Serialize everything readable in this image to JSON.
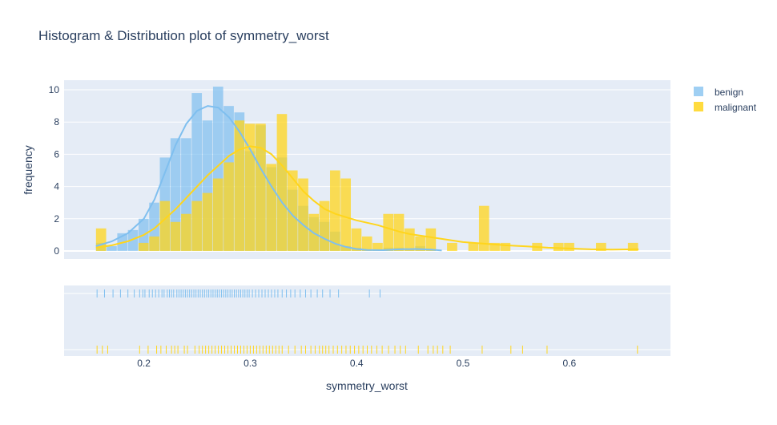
{
  "chart_data": {
    "type": "bar",
    "title": "Histogram & Distribution plot of symmetry_worst",
    "xlabel": "symmetry_worst",
    "ylabel": "frequency",
    "xlim": [
      0.125,
      0.695
    ],
    "ylim": [
      -0.5,
      10.6
    ],
    "bin_width": 0.01,
    "yticks": [
      0,
      2,
      4,
      6,
      8,
      10
    ],
    "xticks": [
      0.2,
      0.3,
      0.4,
      0.5,
      0.6
    ],
    "grid": true,
    "legend_position": "top-right",
    "series": [
      {
        "name": "benign",
        "color": "#7fbfef",
        "bins": [
          {
            "x0": 0.155,
            "v": 0.5
          },
          {
            "x0": 0.165,
            "v": 0.3
          },
          {
            "x0": 0.175,
            "v": 1.1
          },
          {
            "x0": 0.185,
            "v": 1.3
          },
          {
            "x0": 0.195,
            "v": 2.0
          },
          {
            "x0": 0.205,
            "v": 3.0
          },
          {
            "x0": 0.215,
            "v": 5.8
          },
          {
            "x0": 0.225,
            "v": 7.0
          },
          {
            "x0": 0.235,
            "v": 7.0
          },
          {
            "x0": 0.245,
            "v": 9.8
          },
          {
            "x0": 0.255,
            "v": 8.1
          },
          {
            "x0": 0.265,
            "v": 10.2
          },
          {
            "x0": 0.275,
            "v": 9.0
          },
          {
            "x0": 0.285,
            "v": 8.6
          },
          {
            "x0": 0.295,
            "v": 6.2
          },
          {
            "x0": 0.305,
            "v": 7.8
          },
          {
            "x0": 0.315,
            "v": 5.2
          },
          {
            "x0": 0.325,
            "v": 5.8
          },
          {
            "x0": 0.335,
            "v": 3.8
          },
          {
            "x0": 0.345,
            "v": 2.8
          },
          {
            "x0": 0.355,
            "v": 2.1
          },
          {
            "x0": 0.365,
            "v": 1.8
          },
          {
            "x0": 0.375,
            "v": 1.2
          },
          {
            "x0": 0.385,
            "v": 0.3
          },
          {
            "x0": 0.395,
            "v": 0.2
          },
          {
            "x0": 0.405,
            "v": 0.1
          },
          {
            "x0": 0.415,
            "v": 0.1
          },
          {
            "x0": 0.425,
            "v": 0.2
          },
          {
            "x0": 0.435,
            "v": 0.2
          },
          {
            "x0": 0.445,
            "v": 0.1
          },
          {
            "x0": 0.455,
            "v": 0.3
          },
          {
            "x0": 0.465,
            "v": 0.1
          }
        ],
        "kde": [
          [
            0.155,
            0.3
          ],
          [
            0.17,
            0.6
          ],
          [
            0.185,
            1.1
          ],
          [
            0.2,
            2.0
          ],
          [
            0.21,
            3.2
          ],
          [
            0.22,
            4.9
          ],
          [
            0.23,
            6.6
          ],
          [
            0.24,
            7.9
          ],
          [
            0.25,
            8.7
          ],
          [
            0.26,
            9.0
          ],
          [
            0.27,
            8.9
          ],
          [
            0.28,
            8.3
          ],
          [
            0.29,
            7.4
          ],
          [
            0.3,
            6.3
          ],
          [
            0.31,
            5.1
          ],
          [
            0.32,
            4.0
          ],
          [
            0.33,
            3.0
          ],
          [
            0.34,
            2.2
          ],
          [
            0.35,
            1.6
          ],
          [
            0.36,
            1.1
          ],
          [
            0.37,
            0.75
          ],
          [
            0.38,
            0.45
          ],
          [
            0.39,
            0.25
          ],
          [
            0.4,
            0.12
          ],
          [
            0.41,
            0.06
          ],
          [
            0.425,
            0.05
          ],
          [
            0.44,
            0.1
          ],
          [
            0.455,
            0.12
          ],
          [
            0.47,
            0.08
          ],
          [
            0.48,
            0.03
          ]
        ],
        "rug": [
          0.156,
          0.163,
          0.171,
          0.178,
          0.185,
          0.191,
          0.196,
          0.199,
          0.201,
          0.205,
          0.208,
          0.211,
          0.214,
          0.217,
          0.219,
          0.222,
          0.224,
          0.226,
          0.228,
          0.231,
          0.233,
          0.235,
          0.237,
          0.239,
          0.241,
          0.243,
          0.245,
          0.247,
          0.249,
          0.251,
          0.253,
          0.255,
          0.257,
          0.259,
          0.261,
          0.263,
          0.265,
          0.267,
          0.269,
          0.271,
          0.273,
          0.275,
          0.277,
          0.279,
          0.281,
          0.283,
          0.285,
          0.287,
          0.289,
          0.291,
          0.293,
          0.295,
          0.297,
          0.299,
          0.302,
          0.305,
          0.308,
          0.311,
          0.314,
          0.317,
          0.32,
          0.323,
          0.326,
          0.33,
          0.334,
          0.338,
          0.342,
          0.347,
          0.352,
          0.357,
          0.363,
          0.368,
          0.375,
          0.383,
          0.412,
          0.422
        ]
      },
      {
        "name": "malignant",
        "color": "#ffd51c",
        "bins": [
          {
            "x0": 0.155,
            "v": 1.4
          },
          {
            "x0": 0.165,
            "v": 0.0
          },
          {
            "x0": 0.175,
            "v": 0.0
          },
          {
            "x0": 0.185,
            "v": 0.0
          },
          {
            "x0": 0.195,
            "v": 0.5
          },
          {
            "x0": 0.205,
            "v": 0.9
          },
          {
            "x0": 0.215,
            "v": 3.1
          },
          {
            "x0": 0.225,
            "v": 1.8
          },
          {
            "x0": 0.235,
            "v": 2.3
          },
          {
            "x0": 0.245,
            "v": 3.1
          },
          {
            "x0": 0.255,
            "v": 3.6
          },
          {
            "x0": 0.265,
            "v": 4.5
          },
          {
            "x0": 0.275,
            "v": 5.5
          },
          {
            "x0": 0.285,
            "v": 8.1
          },
          {
            "x0": 0.295,
            "v": 7.9
          },
          {
            "x0": 0.305,
            "v": 7.9
          },
          {
            "x0": 0.315,
            "v": 5.4
          },
          {
            "x0": 0.325,
            "v": 8.5
          },
          {
            "x0": 0.335,
            "v": 5.0
          },
          {
            "x0": 0.345,
            "v": 4.5
          },
          {
            "x0": 0.355,
            "v": 2.3
          },
          {
            "x0": 0.365,
            "v": 3.1
          },
          {
            "x0": 0.375,
            "v": 5.0
          },
          {
            "x0": 0.385,
            "v": 4.5
          },
          {
            "x0": 0.395,
            "v": 1.4
          },
          {
            "x0": 0.405,
            "v": 0.9
          },
          {
            "x0": 0.415,
            "v": 0.5
          },
          {
            "x0": 0.425,
            "v": 2.3
          },
          {
            "x0": 0.435,
            "v": 2.3
          },
          {
            "x0": 0.445,
            "v": 1.4
          },
          {
            "x0": 0.455,
            "v": 0.9
          },
          {
            "x0": 0.465,
            "v": 1.4
          },
          {
            "x0": 0.475,
            "v": 0.0
          },
          {
            "x0": 0.485,
            "v": 0.5
          },
          {
            "x0": 0.495,
            "v": 0.0
          },
          {
            "x0": 0.505,
            "v": 0.5
          },
          {
            "x0": 0.515,
            "v": 2.8
          },
          {
            "x0": 0.525,
            "v": 0.5
          },
          {
            "x0": 0.535,
            "v": 0.5
          },
          {
            "x0": 0.545,
            "v": 0.0
          },
          {
            "x0": 0.555,
            "v": 0.0
          },
          {
            "x0": 0.565,
            "v": 0.5
          },
          {
            "x0": 0.575,
            "v": 0.0
          },
          {
            "x0": 0.585,
            "v": 0.5
          },
          {
            "x0": 0.595,
            "v": 0.5
          },
          {
            "x0": 0.605,
            "v": 0.0
          },
          {
            "x0": 0.615,
            "v": 0.0
          },
          {
            "x0": 0.625,
            "v": 0.5
          },
          {
            "x0": 0.655,
            "v": 0.5
          }
        ],
        "kde": [
          [
            0.155,
            0.2
          ],
          [
            0.17,
            0.35
          ],
          [
            0.185,
            0.6
          ],
          [
            0.2,
            1.0
          ],
          [
            0.21,
            1.4
          ],
          [
            0.22,
            2.0
          ],
          [
            0.23,
            2.6
          ],
          [
            0.24,
            3.3
          ],
          [
            0.25,
            4.0
          ],
          [
            0.26,
            4.7
          ],
          [
            0.27,
            5.3
          ],
          [
            0.28,
            5.9
          ],
          [
            0.29,
            6.3
          ],
          [
            0.3,
            6.5
          ],
          [
            0.31,
            6.4
          ],
          [
            0.32,
            6.0
          ],
          [
            0.33,
            5.3
          ],
          [
            0.34,
            4.5
          ],
          [
            0.35,
            3.7
          ],
          [
            0.36,
            3.1
          ],
          [
            0.37,
            2.6
          ],
          [
            0.38,
            2.3
          ],
          [
            0.39,
            2.1
          ],
          [
            0.4,
            1.9
          ],
          [
            0.41,
            1.75
          ],
          [
            0.42,
            1.6
          ],
          [
            0.43,
            1.4
          ],
          [
            0.44,
            1.2
          ],
          [
            0.45,
            1.05
          ],
          [
            0.46,
            0.95
          ],
          [
            0.47,
            0.85
          ],
          [
            0.48,
            0.75
          ],
          [
            0.49,
            0.65
          ],
          [
            0.5,
            0.55
          ],
          [
            0.52,
            0.45
          ],
          [
            0.54,
            0.35
          ],
          [
            0.56,
            0.28
          ],
          [
            0.58,
            0.2
          ],
          [
            0.6,
            0.15
          ],
          [
            0.62,
            0.1
          ],
          [
            0.64,
            0.08
          ],
          [
            0.66,
            0.1
          ],
          [
            0.665,
            0.1
          ]
        ],
        "rug": [
          0.156,
          0.161,
          0.166,
          0.196,
          0.204,
          0.212,
          0.216,
          0.221,
          0.226,
          0.229,
          0.232,
          0.238,
          0.241,
          0.248,
          0.252,
          0.255,
          0.258,
          0.261,
          0.264,
          0.267,
          0.27,
          0.273,
          0.276,
          0.279,
          0.282,
          0.285,
          0.288,
          0.291,
          0.294,
          0.297,
          0.3,
          0.303,
          0.306,
          0.309,
          0.312,
          0.315,
          0.318,
          0.321,
          0.324,
          0.327,
          0.33,
          0.336,
          0.342,
          0.348,
          0.352,
          0.357,
          0.361,
          0.365,
          0.368,
          0.371,
          0.374,
          0.378,
          0.382,
          0.386,
          0.39,
          0.394,
          0.398,
          0.402,
          0.406,
          0.41,
          0.414,
          0.419,
          0.424,
          0.43,
          0.436,
          0.441,
          0.446,
          0.458,
          0.467,
          0.472,
          0.476,
          0.481,
          0.488,
          0.518,
          0.545,
          0.556,
          0.579,
          0.664
        ]
      }
    ]
  }
}
